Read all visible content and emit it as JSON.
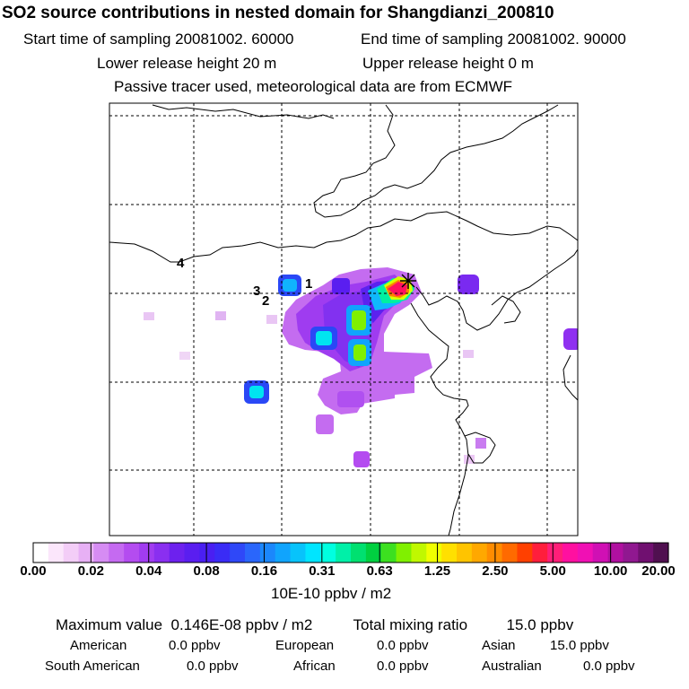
{
  "title": "SO2 source contributions in nested domain for Shangdianzi_200810",
  "header": {
    "start_label": "Start time of sampling 20081002. 60000",
    "end_label": "End time of sampling 20081002. 90000",
    "lower_release": "Lower release height   20 m",
    "upper_release": "Upper release height    0 m",
    "tracer_note": "Passive tracer used, meteorological data are from ECMWF"
  },
  "map": {
    "trajectory_labels": [
      "4",
      "3",
      "2",
      "1"
    ],
    "receptor_marker": "asterisk"
  },
  "colorbar": {
    "ticks": [
      "0.00",
      "0.02",
      "0.04",
      "0.08",
      "0.16",
      "0.31",
      "0.63",
      "1.25",
      "2.50",
      "5.00",
      "10.00",
      "20.00"
    ],
    "units": "10E-10 ppbv / m2",
    "colors": [
      "#ffffff",
      "#fbe6fb",
      "#f3cdf7",
      "#e7b0f5",
      "#d68cf3",
      "#c56af1",
      "#b44cf0",
      "#a13cf0",
      "#8a2ff0",
      "#6d21ee",
      "#5a1ef0",
      "#4a1ff2",
      "#3a2cf6",
      "#2f48f8",
      "#2a66fb",
      "#1b87fc",
      "#10a4fd",
      "#08c3fb",
      "#00e5ff",
      "#00ffe0",
      "#00f0a8",
      "#00e070",
      "#00d040",
      "#3ce020",
      "#80f000",
      "#c0f800",
      "#f0ff00",
      "#ffe000",
      "#ffc400",
      "#ffa800",
      "#ff8c00",
      "#ff6a00",
      "#ff4000",
      "#ff1e3c",
      "#ff1e78",
      "#ff10a0",
      "#f010b4",
      "#d010b4",
      "#b010a0",
      "#901890",
      "#701070",
      "#501050"
    ]
  },
  "summary": {
    "max_label": "Maximum value",
    "max_value": "0.146E-08 ppbv / m2",
    "total_label": "Total mixing ratio",
    "total_value": "15.0 ppbv",
    "regions": [
      {
        "name": "American",
        "value": "0.0 ppbv"
      },
      {
        "name": "European",
        "value": "0.0 ppbv"
      },
      {
        "name": "Asian",
        "value": "15.0 ppbv"
      },
      {
        "name": "South American",
        "value": "0.0 ppbv"
      },
      {
        "name": "African",
        "value": "0.0 ppbv"
      },
      {
        "name": "Australian",
        "value": "0.0 ppbv"
      }
    ]
  }
}
